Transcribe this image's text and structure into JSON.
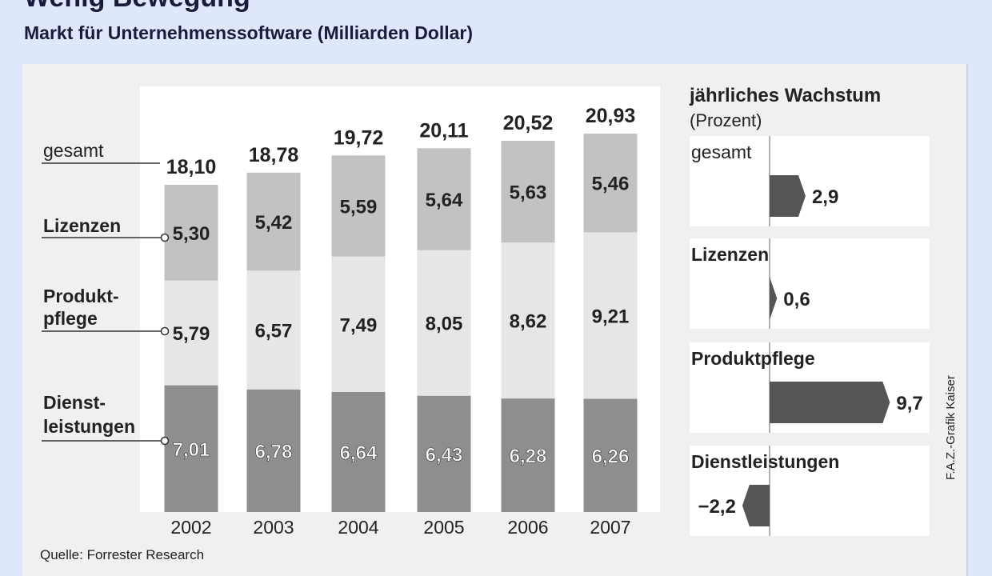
{
  "title": "Wenig Bewegung",
  "subtitle": "Markt für Unternehmenssoftware (Milliarden Dollar)",
  "source": "Quelle: Forrester Research",
  "credit": "F.A.Z.-Grafik Kaiser",
  "colors": {
    "background": "#dfe7fa",
    "panel": "#f0f0f0",
    "dienstleistungen": "#8e8e8e",
    "produktpflege": "#e6e6e6",
    "lizenzen": "#c2c2c2",
    "growth_bar": "#555555"
  },
  "chart_data": [
    {
      "type": "bar",
      "stacked": true,
      "categories": [
        "2002",
        "2003",
        "2004",
        "2005",
        "2006",
        "2007"
      ],
      "series": [
        {
          "name": "Dienst-\nleistungen",
          "key": "dienstleistungen",
          "values": [
            "7,01",
            "6,78",
            "6,64",
            "6,43",
            "6,28",
            "6,26"
          ],
          "numeric": [
            7.01,
            6.78,
            6.64,
            6.43,
            6.28,
            6.26
          ]
        },
        {
          "name": "Produkt-\npflege",
          "key": "produktpflege",
          "values": [
            "5,79",
            "6,57",
            "7,49",
            "8,05",
            "8,62",
            "9,21"
          ],
          "numeric": [
            5.79,
            6.57,
            7.49,
            8.05,
            8.62,
            9.21
          ]
        },
        {
          "name": "Lizenzen",
          "key": "lizenzen",
          "values": [
            "5,30",
            "5,42",
            "5,59",
            "5,64",
            "5,63",
            "5,46"
          ],
          "numeric": [
            5.3,
            5.42,
            5.59,
            5.64,
            5.63,
            5.46
          ]
        }
      ],
      "totals_label": "gesamt",
      "totals": [
        "18,10",
        "18,78",
        "19,72",
        "20,11",
        "20,52",
        "20,93"
      ],
      "totals_numeric": [
        18.1,
        18.78,
        19.72,
        20.11,
        20.52,
        20.93
      ],
      "ylim": [
        0,
        23.5
      ]
    },
    {
      "type": "bar",
      "orientation": "horizontal",
      "title": "jährliches Wachstum",
      "subtitle": "(Prozent)",
      "categories": [
        "gesamt",
        "Lizenzen",
        "Produktpflege",
        "Dienstleistungen"
      ],
      "values": [
        "2,9",
        "0,6",
        "9,7",
        "−2,2"
      ],
      "numeric": [
        2.9,
        0.6,
        9.7,
        -2.2
      ]
    }
  ]
}
